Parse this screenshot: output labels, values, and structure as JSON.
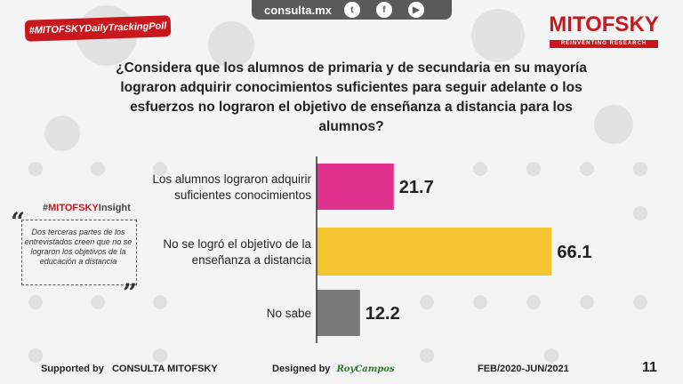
{
  "header": {
    "site": "consulta.mx",
    "social": [
      {
        "icon": "twitter-icon",
        "glyph": "t"
      },
      {
        "icon": "facebook-icon",
        "glyph": "f"
      },
      {
        "icon": "youtube-icon",
        "glyph": "▶"
      }
    ],
    "tag": "#MITOFSKYDailyTrackingPoll",
    "logo": {
      "name": "MITOFSKY",
      "tagline": "REINVENTING RESEARCH"
    }
  },
  "question": "¿Considera que los alumnos de primaria y de secundaria en su mayoría lograron adquirir conocimientos suficientes para seguir adelante o los esfuerzos no lograron el objetivo de enseñanza a distancia para los alumnos?",
  "insight": {
    "title_prefix": "#",
    "title_brand": "MITOFSKY",
    "title_suffix": "Insight",
    "text": "Dos terceras partes de los entrevistados creen que no se lograron los objetivos de la educación a distancia"
  },
  "chart_data": {
    "type": "bar",
    "orientation": "horizontal",
    "categories": [
      [
        "Los alumnos lograron adquirir",
        "suficientes conocimientos"
      ],
      [
        "No se logró el objetivo de la",
        "enseñanza a distancia"
      ],
      [
        "No sabe"
      ]
    ],
    "values": [
      21.7,
      66.1,
      12.2
    ],
    "value_labels": [
      "21.7",
      "66.1",
      "12.2"
    ],
    "colors": [
      "#e0318f",
      "#f2c531",
      "#7a7a7a"
    ],
    "xlim": [
      0,
      70
    ],
    "title": "",
    "xlabel": "",
    "ylabel": ""
  },
  "footer": {
    "supported_label": "Supported by",
    "supported_by": "CONSULTA  MITOFSKY",
    "designed_label": "Designed by",
    "designer": "RoyCampos",
    "period": "FEB/2020-JUN/2021",
    "page": "11"
  },
  "colors": {
    "brand_red": "#c8181e",
    "topbar": "#5a5a5a"
  }
}
